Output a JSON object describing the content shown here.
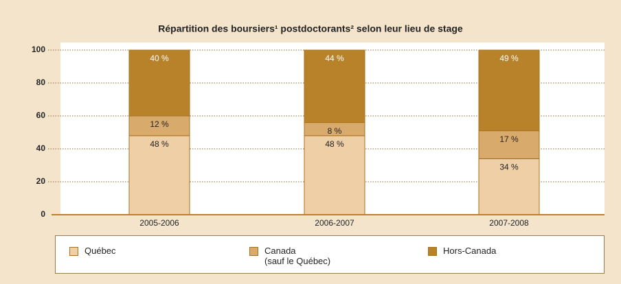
{
  "chart_data": {
    "type": "stacked_bar",
    "title": "Répartition des boursiers¹ postdoctorants² selon leur lieu de stage",
    "categories": [
      "2005-2006",
      "2006-2007",
      "2007-2008"
    ],
    "series": [
      {
        "name": "Québec",
        "color": "#efcfa6",
        "values": [
          48,
          48,
          34
        ],
        "value_labels": [
          "48 %",
          "48 %",
          "34 %"
        ]
      },
      {
        "name": "Canada\n(sauf le Québec)",
        "color": "#d8aa6c",
        "values": [
          12,
          8,
          17
        ],
        "value_labels": [
          "12 %",
          "8 %",
          "17 %"
        ]
      },
      {
        "name": "Hors-Canada",
        "color": "#b8822b",
        "values": [
          40,
          44,
          49
        ],
        "value_labels": [
          "40 %",
          "44 %",
          "49 %"
        ]
      }
    ],
    "ylim": [
      0,
      100
    ],
    "yticks": [
      0,
      20,
      40,
      60,
      80,
      100
    ],
    "grid": true
  }
}
